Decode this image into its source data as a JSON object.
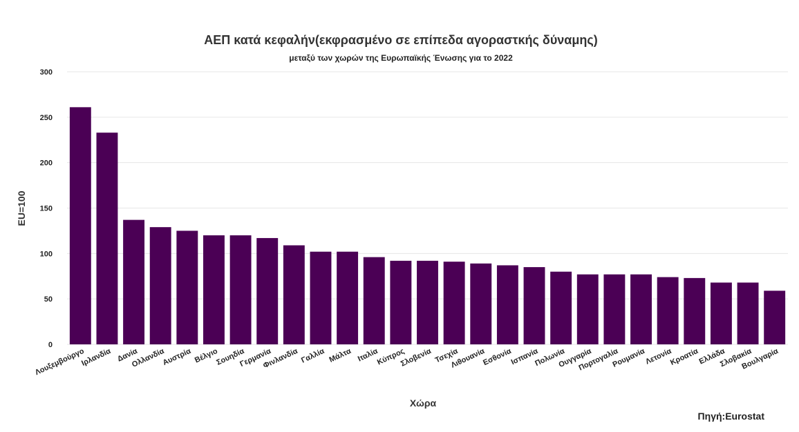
{
  "chart_data": {
    "type": "bar",
    "title": "ΑΕΠ κατά κεφαλήν(εκφρασμένο σε επίπεδα αγοραστκής δύναμης)",
    "subtitle": "μεταξύ των χωρών της Ευρωπαϊκής Ένωσης για το 2022",
    "xlabel": "Χώρα",
    "ylabel": "EU=100",
    "source": "Πηγή:Eurostat",
    "ylim": [
      0,
      300
    ],
    "yticks": [
      0,
      50,
      100,
      150,
      200,
      250,
      300
    ],
    "grid": true,
    "bar_color": "#4b0055",
    "categories": [
      "Λουξεμβούργο",
      "Ιρλανδία",
      "Δανία",
      "Ολλανδία",
      "Αυστρία",
      "Βέλγιο",
      "Σουηδία",
      "Γερμανία",
      "Φινλανδία",
      "Γαλλία",
      "Μάλτα",
      "Ιταλία",
      "Κύπρος",
      "Σλοβενία",
      "Τσεχία",
      "Λιθουανία",
      "Εσθονία",
      "Ισπανία",
      "Πολωνία",
      "Ουγγαρία",
      "Πορτογαλία",
      "Ρουμανία",
      "Λετονία",
      "Κροατία",
      "Ελλάδα",
      "Σλοβακία",
      "Βουλγαρία"
    ],
    "values": [
      261,
      233,
      137,
      129,
      125,
      120,
      120,
      117,
      109,
      102,
      102,
      96,
      92,
      92,
      91,
      89,
      87,
      85,
      80,
      77,
      77,
      77,
      74,
      73,
      68,
      68,
      59
    ]
  }
}
